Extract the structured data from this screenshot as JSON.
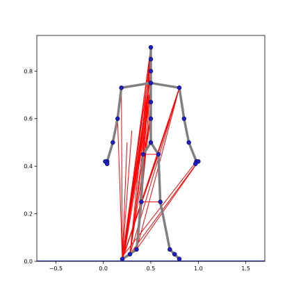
{
  "chart_data": {
    "type": "scatter",
    "title": "",
    "xlabel": "",
    "ylabel": "",
    "xlim": [
      -0.7,
      1.7
    ],
    "ylim": [
      0.0,
      0.95
    ],
    "grid": false,
    "x_ticks": [
      {
        "value": -0.5,
        "label": "−0.5"
      },
      {
        "value": 0.0,
        "label": "0.0"
      },
      {
        "value": 0.5,
        "label": "0.5"
      },
      {
        "value": 1.0,
        "label": "1.0"
      },
      {
        "value": 1.5,
        "label": "1.5"
      }
    ],
    "y_ticks": [
      {
        "value": 0.0,
        "label": "0.0"
      },
      {
        "value": 0.2,
        "label": "0.2"
      },
      {
        "value": 0.4,
        "label": "0.4"
      },
      {
        "value": 0.6,
        "label": "0.6"
      },
      {
        "value": 0.8,
        "label": "0.8"
      }
    ],
    "skeleton_color": "#808080",
    "line_color": "#ff0000",
    "point_color": "#1f1fbf",
    "floor_color": "#1f1fbf",
    "floor_y": 0.0,
    "skeleton_segments": [
      [
        [
          0.5,
          0.9
        ],
        [
          0.5,
          0.75
        ]
      ],
      [
        [
          0.5,
          0.75
        ],
        [
          0.19,
          0.73
        ]
      ],
      [
        [
          0.5,
          0.75
        ],
        [
          0.8,
          0.73
        ]
      ],
      [
        [
          0.19,
          0.73
        ],
        [
          0.15,
          0.6
        ]
      ],
      [
        [
          0.15,
          0.6
        ],
        [
          0.1,
          0.5
        ]
      ],
      [
        [
          0.1,
          0.5
        ],
        [
          0.04,
          0.42
        ]
      ],
      [
        [
          0.8,
          0.73
        ],
        [
          0.85,
          0.6
        ]
      ],
      [
        [
          0.85,
          0.6
        ],
        [
          0.9,
          0.5
        ]
      ],
      [
        [
          0.9,
          0.5
        ],
        [
          0.98,
          0.42
        ]
      ],
      [
        [
          0.5,
          0.75
        ],
        [
          0.5,
          0.5
        ]
      ],
      [
        [
          0.5,
          0.5
        ],
        [
          0.42,
          0.45
        ]
      ],
      [
        [
          0.5,
          0.5
        ],
        [
          0.58,
          0.45
        ]
      ],
      [
        [
          0.42,
          0.45
        ],
        [
          0.4,
          0.25
        ]
      ],
      [
        [
          0.4,
          0.25
        ],
        [
          0.35,
          0.05
        ]
      ],
      [
        [
          0.35,
          0.05
        ],
        [
          0.28,
          0.03
        ]
      ],
      [
        [
          0.28,
          0.03
        ],
        [
          0.2,
          0.01
        ]
      ],
      [
        [
          0.58,
          0.45
        ],
        [
          0.6,
          0.25
        ]
      ],
      [
        [
          0.6,
          0.25
        ],
        [
          0.7,
          0.05
        ]
      ],
      [
        [
          0.7,
          0.05
        ],
        [
          0.75,
          0.03
        ]
      ],
      [
        [
          0.75,
          0.03
        ],
        [
          0.8,
          0.01
        ]
      ]
    ],
    "joints": [
      {
        "x": 0.5,
        "y": 0.9
      },
      {
        "x": 0.5,
        "y": 0.85
      },
      {
        "x": 0.5,
        "y": 0.8
      },
      {
        "x": 0.5,
        "y": 0.75
      },
      {
        "x": 0.19,
        "y": 0.73
      },
      {
        "x": 0.8,
        "y": 0.73
      },
      {
        "x": 0.15,
        "y": 0.6
      },
      {
        "x": 0.85,
        "y": 0.6
      },
      {
        "x": 0.1,
        "y": 0.5
      },
      {
        "x": 0.9,
        "y": 0.5
      },
      {
        "x": 0.04,
        "y": 0.42
      },
      {
        "x": 0.02,
        "y": 0.42
      },
      {
        "x": 0.04,
        "y": 0.41
      },
      {
        "x": 0.98,
        "y": 0.42
      },
      {
        "x": 1.0,
        "y": 0.42
      },
      {
        "x": 0.97,
        "y": 0.41
      },
      {
        "x": 0.5,
        "y": 0.67
      },
      {
        "x": 0.5,
        "y": 0.6
      },
      {
        "x": 0.5,
        "y": 0.5
      },
      {
        "x": 0.42,
        "y": 0.45
      },
      {
        "x": 0.58,
        "y": 0.45
      },
      {
        "x": 0.4,
        "y": 0.25
      },
      {
        "x": 0.6,
        "y": 0.25
      },
      {
        "x": 0.35,
        "y": 0.05
      },
      {
        "x": 0.7,
        "y": 0.05
      },
      {
        "x": 0.28,
        "y": 0.03
      },
      {
        "x": 0.75,
        "y": 0.03
      },
      {
        "x": 0.2,
        "y": 0.01
      },
      {
        "x": 0.8,
        "y": 0.01
      }
    ],
    "red_lines": [
      [
        [
          0.2,
          0.01
        ],
        [
          0.5,
          0.9
        ]
      ],
      [
        [
          0.2,
          0.01
        ],
        [
          0.5,
          0.85
        ]
      ],
      [
        [
          0.2,
          0.01
        ],
        [
          0.5,
          0.8
        ]
      ],
      [
        [
          0.2,
          0.01
        ],
        [
          0.49,
          0.75
        ]
      ],
      [
        [
          0.2,
          0.01
        ],
        [
          0.48,
          0.7
        ]
      ],
      [
        [
          0.2,
          0.01
        ],
        [
          0.47,
          0.65
        ]
      ],
      [
        [
          0.2,
          0.01
        ],
        [
          0.45,
          0.6
        ]
      ],
      [
        [
          0.2,
          0.01
        ],
        [
          0.8,
          0.73
        ]
      ],
      [
        [
          0.2,
          0.01
        ],
        [
          0.7,
          0.6
        ]
      ],
      [
        [
          0.2,
          0.01
        ],
        [
          0.58,
          0.45
        ]
      ],
      [
        [
          0.2,
          0.01
        ],
        [
          0.19,
          0.73
        ]
      ],
      [
        [
          0.2,
          0.01
        ],
        [
          0.15,
          0.6
        ]
      ],
      [
        [
          0.2,
          0.01
        ],
        [
          0.25,
          0.5
        ]
      ],
      [
        [
          0.2,
          0.01
        ],
        [
          0.3,
          0.55
        ]
      ],
      [
        [
          0.22,
          0.03
        ],
        [
          0.5,
          0.9
        ]
      ],
      [
        [
          0.22,
          0.03
        ],
        [
          0.5,
          0.8
        ]
      ],
      [
        [
          0.22,
          0.03
        ],
        [
          0.5,
          0.7
        ]
      ],
      [
        [
          0.22,
          0.03
        ],
        [
          0.8,
          0.73
        ]
      ],
      [
        [
          0.22,
          0.03
        ],
        [
          0.98,
          0.42
        ]
      ],
      [
        [
          0.28,
          0.03
        ],
        [
          0.5,
          0.9
        ]
      ],
      [
        [
          0.28,
          0.03
        ],
        [
          0.5,
          0.75
        ]
      ],
      [
        [
          0.28,
          0.03
        ],
        [
          0.5,
          0.6
        ]
      ],
      [
        [
          0.28,
          0.03
        ],
        [
          0.8,
          0.73
        ]
      ],
      [
        [
          0.28,
          0.03
        ],
        [
          0.98,
          0.41
        ]
      ],
      [
        [
          0.28,
          0.03
        ],
        [
          0.42,
          0.45
        ]
      ],
      [
        [
          0.35,
          0.05
        ],
        [
          0.5,
          0.9
        ]
      ],
      [
        [
          0.35,
          0.05
        ],
        [
          0.5,
          0.67
        ]
      ],
      [
        [
          0.35,
          0.05
        ],
        [
          0.8,
          0.73
        ]
      ],
      [
        [
          0.35,
          0.05
        ],
        [
          1.0,
          0.42
        ]
      ],
      [
        [
          0.35,
          0.05
        ],
        [
          0.4,
          0.25
        ]
      ],
      [
        [
          0.4,
          0.25
        ],
        [
          0.5,
          0.9
        ]
      ],
      [
        [
          0.4,
          0.25
        ],
        [
          0.5,
          0.75
        ]
      ],
      [
        [
          0.4,
          0.25
        ],
        [
          0.6,
          0.25
        ]
      ],
      [
        [
          0.42,
          0.45
        ],
        [
          0.5,
          0.9
        ]
      ],
      [
        [
          0.42,
          0.45
        ],
        [
          0.5,
          0.6
        ]
      ],
      [
        [
          0.42,
          0.45
        ],
        [
          0.58,
          0.45
        ]
      ]
    ]
  }
}
